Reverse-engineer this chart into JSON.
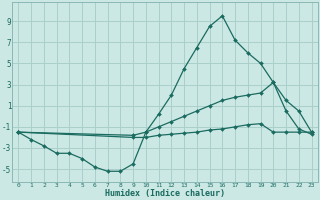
{
  "xlabel": "Humidex (Indice chaleur)",
  "bg_color": "#cce8e4",
  "grid_color": "#aacfcb",
  "line_color": "#1a6b60",
  "spine_color": "#8ab8b4",
  "xlim": [
    -0.5,
    23.5
  ],
  "ylim": [
    -6.2,
    10.8
  ],
  "xticks": [
    0,
    1,
    2,
    3,
    4,
    5,
    6,
    7,
    8,
    9,
    10,
    11,
    12,
    13,
    14,
    15,
    16,
    17,
    18,
    19,
    20,
    21,
    22,
    23
  ],
  "yticks": [
    -5,
    -3,
    -1,
    1,
    3,
    5,
    7,
    9
  ],
  "line1_x": [
    0,
    1,
    2,
    3,
    4,
    5,
    6,
    7,
    8,
    9,
    10,
    11,
    12,
    13,
    14,
    15,
    16,
    17,
    18,
    19,
    20,
    21,
    22,
    23
  ],
  "line1_y": [
    -1.5,
    -2.2,
    -2.8,
    -3.5,
    -3.5,
    -4.0,
    -4.8,
    -5.2,
    -5.2,
    -4.5,
    -1.5,
    0.2,
    2.0,
    4.5,
    6.5,
    8.5,
    9.5,
    7.2,
    6.0,
    5.0,
    3.2,
    0.5,
    -1.2,
    -1.7
  ],
  "line2_x": [
    0,
    9,
    10,
    11,
    12,
    13,
    14,
    15,
    16,
    17,
    18,
    19,
    20,
    21,
    22,
    23
  ],
  "line2_y": [
    -1.5,
    -1.8,
    -1.5,
    -1.0,
    -0.5,
    0.0,
    0.5,
    1.0,
    1.5,
    1.8,
    2.0,
    2.2,
    3.2,
    1.5,
    0.5,
    -1.5
  ],
  "line3_x": [
    0,
    9,
    10,
    11,
    12,
    13,
    14,
    15,
    16,
    17,
    18,
    19,
    20,
    21,
    22,
    23
  ],
  "line3_y": [
    -1.5,
    -2.0,
    -2.0,
    -1.8,
    -1.7,
    -1.6,
    -1.5,
    -1.3,
    -1.2,
    -1.0,
    -0.8,
    -0.7,
    -1.5,
    -1.5,
    -1.5,
    -1.5
  ]
}
